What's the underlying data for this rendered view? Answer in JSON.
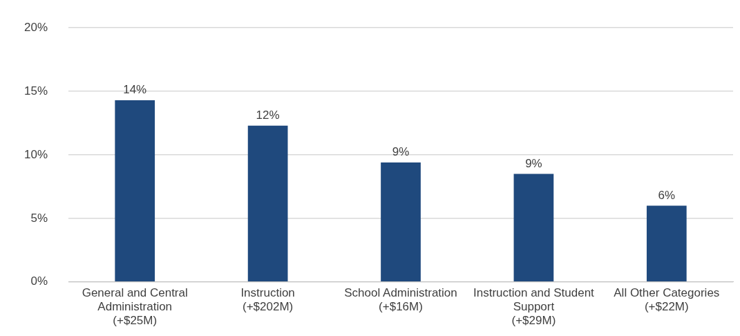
{
  "chart_data": {
    "type": "bar",
    "categories": [
      "General and Central Administration (+$25M)",
      "Instruction (+$202M)",
      "School Administration (+$16M)",
      "Instruction and Student Support (+$29M)",
      "All Other Categories (+$22M)"
    ],
    "values": [
      14.3,
      12.3,
      9.4,
      8.5,
      6.0
    ],
    "value_labels": [
      "14%",
      "12%",
      "9%",
      "9%",
      "6%"
    ],
    "color": "#1f497d",
    "ylim": [
      0,
      20
    ],
    "yticks": [
      {
        "value": 0,
        "label": "0%"
      },
      {
        "value": 5,
        "label": "5%"
      },
      {
        "value": 10,
        "label": "10%"
      },
      {
        "value": 15,
        "label": "15%"
      },
      {
        "value": 20,
        "label": "20%"
      }
    ],
    "grid": "y",
    "legend": false
  }
}
